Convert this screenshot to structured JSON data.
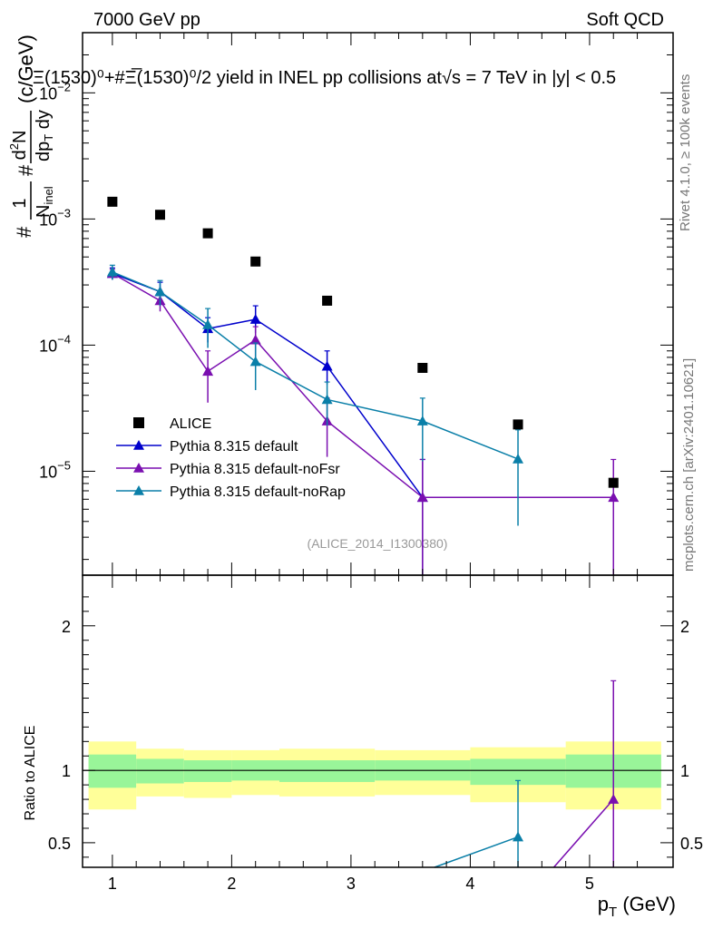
{
  "header": {
    "left": "7000 GeV pp",
    "right": "Soft QCD"
  },
  "title_text": "Ξ(1530)⁰+#Ξ̅(1530)⁰/2 yield in INEL pp collisions at√s = 7 TeV in |y| < 0.5",
  "ylabel": {
    "prefix": "#",
    "one": "1",
    "n": "N",
    "inel": "inel",
    "hash": "#",
    "d2n_d": "d",
    "d2n_two": "2",
    "d2n_n": "N",
    "dpt": "dp",
    "dpt_t": "T",
    "dy": " dy",
    "units": "(c/GeV)"
  },
  "side_labels": {
    "rivet": "Rivet 4.1.0, ≥ 100k events",
    "mcplots": "mcplots.cern.ch [arXiv:2401.10621]"
  },
  "watermark": "(ALICE_2014_I1300380)",
  "ratio_ylabel": "Ratio to ALICE",
  "xlabel": {
    "p": "p",
    "t": "T",
    "rest": " (GeV)"
  },
  "legend": [
    {
      "label": "ALICE",
      "marker": "square",
      "color": "#000000"
    },
    {
      "label": "Pythia 8.315 default",
      "marker": "triangle",
      "color": "#0000cc"
    },
    {
      "label": "Pythia 8.315 default-noFsr",
      "marker": "triangle",
      "color": "#7a0fb0"
    },
    {
      "label": "Pythia 8.315 default-noRap",
      "marker": "triangle",
      "color": "#0a7fa8"
    }
  ],
  "chart_data": {
    "type": "scatter",
    "x_range": [
      0.75,
      5.7
    ],
    "y_range_log": [
      1.5e-06,
      0.03
    ],
    "ratio_range": [
      0.33,
      2.35
    ],
    "x_ticks": [
      1,
      2,
      3,
      4,
      5
    ],
    "y_ticks": [
      {
        "value": 0.01,
        "base": "10",
        "exp": "−2"
      },
      {
        "value": 0.001,
        "base": "10",
        "exp": "−3"
      },
      {
        "value": 0.0001,
        "base": "10",
        "exp": "−4"
      },
      {
        "value": 1e-05,
        "base": "10",
        "exp": "−5"
      }
    ],
    "ratio_ticks": [
      {
        "value": 0.5,
        "label": "0.5"
      },
      {
        "value": 1,
        "label": "1"
      },
      {
        "value": 2,
        "label": "2"
      }
    ],
    "alice": {
      "x": [
        1.0,
        1.4,
        1.8,
        2.2,
        2.8,
        3.6,
        4.4,
        5.2
      ],
      "y": [
        0.00137,
        0.00108,
        0.00077,
        0.00046,
        0.000225,
        6.6e-05,
        2.35e-05,
        8.1e-06
      ],
      "bins": [
        [
          0.8,
          1.2
        ],
        [
          1.2,
          1.6
        ],
        [
          1.6,
          2.0
        ],
        [
          2.0,
          2.4
        ],
        [
          2.4,
          3.2
        ],
        [
          3.2,
          4.0
        ],
        [
          4.0,
          4.8
        ],
        [
          4.8,
          5.6
        ]
      ],
      "stat_band": [
        [
          0.88,
          1.11
        ],
        [
          0.91,
          1.08
        ],
        [
          0.92,
          1.07
        ],
        [
          0.93,
          1.07
        ],
        [
          0.92,
          1.07
        ],
        [
          0.93,
          1.07
        ],
        [
          0.9,
          1.08
        ],
        [
          0.88,
          1.11
        ]
      ],
      "tot_band": [
        [
          0.73,
          1.2
        ],
        [
          0.82,
          1.15
        ],
        [
          0.81,
          1.14
        ],
        [
          0.83,
          1.14
        ],
        [
          0.82,
          1.15
        ],
        [
          0.83,
          1.14
        ],
        [
          0.78,
          1.16
        ],
        [
          0.73,
          1.2
        ]
      ]
    },
    "series": [
      {
        "name": "Pythia 8.315 default",
        "color": "#0000cc",
        "x": [
          1.0,
          1.4,
          1.8,
          2.2,
          2.8,
          3.6
        ],
        "y": [
          0.00037,
          0.000265,
          0.000135,
          0.00016,
          6.8e-05,
          6.2e-06
        ],
        "err_lo": [
          4e-05,
          5e-05,
          3e-05,
          3.5e-05,
          1.9e-05,
          6.2e-06
        ],
        "err_hi": [
          4e-05,
          5e-05,
          3e-05,
          4.5e-05,
          2.2e-05,
          6.2e-06
        ]
      },
      {
        "name": "Pythia 8.315 default-noFsr",
        "color": "#7a0fb0",
        "x": [
          1.0,
          1.4,
          1.8,
          2.2,
          2.8,
          3.6,
          5.2
        ],
        "y": [
          0.00037,
          0.000225,
          6.2e-05,
          0.00011,
          2.5e-05,
          6.2e-06,
          6.2e-06
        ],
        "err_lo": [
          3e-05,
          4e-05,
          2.7e-05,
          3e-05,
          1.2e-05,
          6.2e-06,
          6.2e-06
        ],
        "err_hi": [
          3e-05,
          4e-05,
          2.8e-05,
          3e-05,
          1.3e-05,
          6.2e-06,
          6.2e-06
        ],
        "ratio_x": [
          4.7,
          5.2
        ],
        "ratio_y": [
          0.33,
          0.8
        ],
        "ratio_err": [
          0.0,
          0.82
        ]
      },
      {
        "name": "Pythia 8.315 default-noRap",
        "color": "#0a7fa8",
        "x": [
          1.0,
          1.4,
          1.8,
          2.2,
          2.8,
          3.6,
          4.4
        ],
        "y": [
          0.00038,
          0.000265,
          0.000145,
          7.4e-05,
          3.7e-05,
          2.5e-05,
          1.25e-05
        ],
        "err_lo": [
          5e-05,
          6e-05,
          5e-05,
          3e-05,
          1.4e-05,
          1.3e-05,
          8.8e-06
        ],
        "err_hi": [
          5e-05,
          6e-05,
          5e-05,
          3e-05,
          1.4e-05,
          1.3e-05,
          8.8e-06
        ],
        "ratio_x": [
          3.7,
          4.4
        ],
        "ratio_y": [
          0.33,
          0.54
        ],
        "ratio_err": [
          0.0,
          0.39
        ]
      }
    ]
  }
}
